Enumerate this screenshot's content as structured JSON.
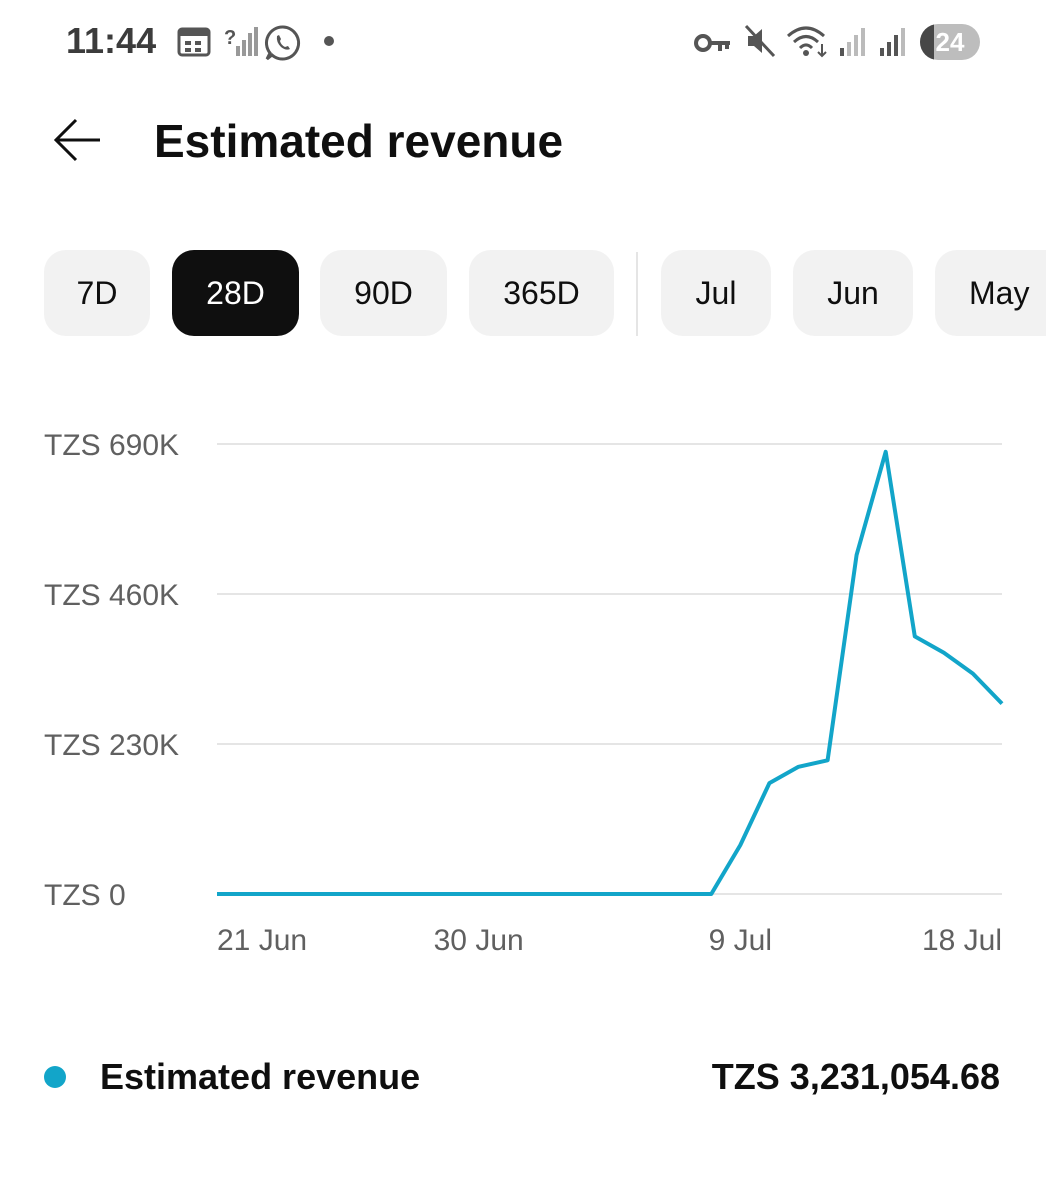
{
  "status_bar": {
    "time": "11:44",
    "battery_level": "24",
    "battery_fraction": 0.24,
    "icons": [
      "calendar-icon",
      "no-signal-icon",
      "whatsapp-icon",
      "notification-dot-icon",
      "vpn-key-icon",
      "mute-icon",
      "wifi-icon",
      "signal-icon",
      "signal-icon"
    ]
  },
  "header": {
    "title": "Estimated revenue"
  },
  "range_chips": [
    {
      "label": "7D",
      "selected": false
    },
    {
      "label": "28D",
      "selected": true
    },
    {
      "label": "90D",
      "selected": false
    },
    {
      "label": "365D",
      "selected": false
    },
    {
      "label": "Jul",
      "selected": false
    },
    {
      "label": "Jun",
      "selected": false
    },
    {
      "label": "May",
      "selected": false
    }
  ],
  "colors": {
    "line": "#12a5c9",
    "grid": "#e5e5e5",
    "selected_chip": "#0f0f0f",
    "chip": "#f2f2f2"
  },
  "chart_data": {
    "type": "line",
    "ylim": [
      0,
      690000
    ],
    "y_ticks": [
      {
        "value": 0,
        "label": "TZS 0"
      },
      {
        "value": 230000,
        "label": "TZS 230K"
      },
      {
        "value": 460000,
        "label": "TZS 460K"
      },
      {
        "value": 690000,
        "label": "TZS 690K"
      }
    ],
    "x_ticks": [
      {
        "day": 0,
        "label": "21 Jun"
      },
      {
        "day": 9,
        "label": "30 Jun"
      },
      {
        "day": 18,
        "label": "9 Jul"
      },
      {
        "day": 27,
        "label": "18 Jul"
      }
    ],
    "x_days": [
      "21 Jun",
      "22 Jun",
      "23 Jun",
      "24 Jun",
      "25 Jun",
      "26 Jun",
      "27 Jun",
      "28 Jun",
      "29 Jun",
      "30 Jun",
      "1 Jul",
      "2 Jul",
      "3 Jul",
      "4 Jul",
      "5 Jul",
      "6 Jul",
      "7 Jul",
      "8 Jul",
      "9 Jul",
      "10 Jul",
      "11 Jul",
      "12 Jul",
      "13 Jul",
      "14 Jul",
      "15 Jul",
      "16 Jul",
      "17 Jul",
      "18 Jul"
    ],
    "values": [
      0,
      0,
      0,
      0,
      0,
      0,
      0,
      0,
      0,
      0,
      0,
      0,
      0,
      0,
      0,
      0,
      0,
      0,
      75000,
      170000,
      195000,
      205000,
      520000,
      678000,
      395000,
      370000,
      338000,
      292000
    ],
    "grid": true,
    "legend": "bottom"
  },
  "legend": {
    "label": "Estimated revenue",
    "total": "TZS 3,231,054.68"
  }
}
